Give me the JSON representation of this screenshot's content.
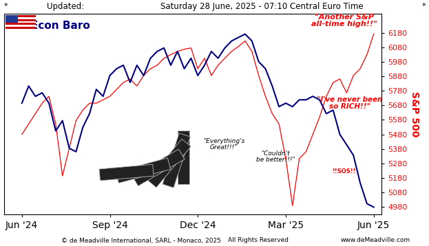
{
  "header": {
    "left_mark": "*",
    "label": "Updated:",
    "timestamp": "Saturday 28 June, 2025 - 07:10 Central Euro Time",
    "right_mark": "*"
  },
  "chart_data": {
    "type": "line",
    "title": "Econ Baro",
    "y_label": "S&P 500",
    "categories": [
      "Jun '24",
      null,
      null,
      null,
      null,
      null,
      null,
      null,
      null,
      null,
      null,
      null,
      null,
      "Sep '24",
      null,
      null,
      null,
      null,
      null,
      null,
      null,
      null,
      null,
      null,
      null,
      null,
      "Dec '24",
      null,
      null,
      null,
      null,
      null,
      null,
      null,
      null,
      null,
      null,
      null,
      null,
      "Mar '25",
      null,
      null,
      null,
      null,
      null,
      null,
      null,
      null,
      null,
      null,
      null,
      null,
      "Jun '25"
    ],
    "series": [
      {
        "name": "S&P 500",
        "color": "#ff0000",
        "values": [
          5480,
          5552,
          5623,
          5695,
          5742,
          5552,
          5195,
          5385,
          5575,
          5647,
          5695,
          5695,
          5718,
          5742,
          5790,
          5837,
          5861,
          5813,
          5885,
          5932,
          5956,
          6004,
          6028,
          6051,
          6066,
          6075,
          5932,
          6004,
          5885,
          5956,
          6004,
          6051,
          6085,
          6123,
          6051,
          5885,
          5742,
          5623,
          5552,
          5314,
          4990,
          5314,
          5361,
          5480,
          5599,
          5742,
          5837,
          5861,
          5766,
          5885,
          5932,
          6028,
          6170
        ]
      },
      {
        "name": "Econ Baro",
        "color": "#000080",
        "values": [
          5695,
          5813,
          5742,
          5766,
          5695,
          5504,
          5575,
          5385,
          5361,
          5528,
          5623,
          5790,
          5742,
          5885,
          5932,
          5956,
          5837,
          5956,
          5885,
          6004,
          6051,
          6075,
          5956,
          6051,
          5932,
          6004,
          5885,
          5956,
          6051,
          6004,
          6075,
          6123,
          6147,
          6170,
          6123,
          5980,
          5932,
          5813,
          5671,
          5695,
          5671,
          5718,
          5718,
          5742,
          5718,
          5623,
          5647,
          5480,
          5409,
          5337,
          5147,
          5004,
          4980
        ]
      }
    ],
    "ylim": [
      4930,
      6310
    ],
    "yticks": [
      4980,
      5080,
      5180,
      5280,
      5380,
      5480,
      5580,
      5680,
      5780,
      5880,
      5980,
      6080,
      6180
    ],
    "grid": false,
    "annotations": [
      {
        "text": "\"Another S&P\nall-time high!!\"",
        "color": "#ff0000"
      },
      {
        "text": "\"I've never been\nso RICH!!\"",
        "color": "#ff0000"
      },
      {
        "text": "\"Everything's\nGreat!!!\"",
        "color": "#000000"
      },
      {
        "text": "\"Couldn't\nbe better!!!\"",
        "color": "#000000"
      },
      {
        "text": "!!SOS!!",
        "color": "#ff0000"
      }
    ]
  },
  "footer": {
    "copyright": "© de Meadville International, SARL - Monaco, 2025",
    "rights": "All Rights Reserved",
    "website": "www.deMeadville.com"
  }
}
